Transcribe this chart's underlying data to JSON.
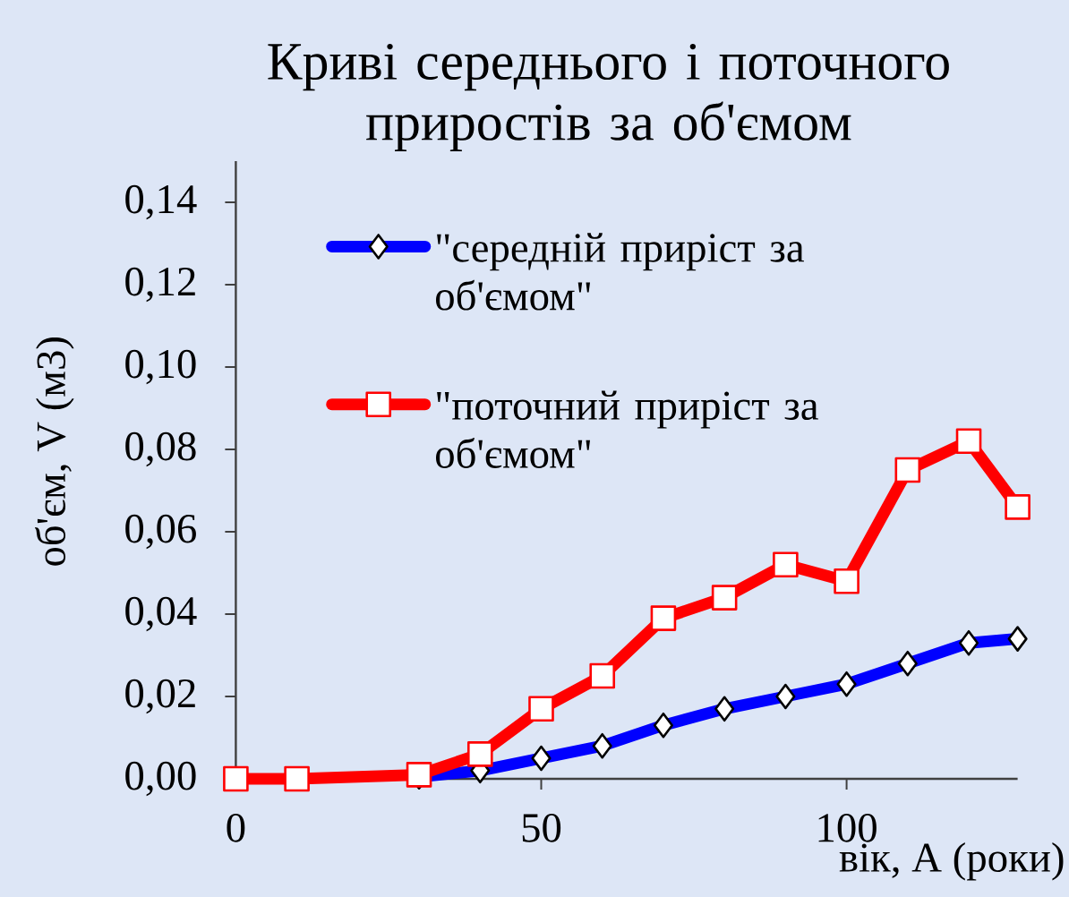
{
  "chart_data": {
    "type": "line",
    "title": "Криві середнього і поточного приростів за об'ємом",
    "xlabel": "вік, А (роки)",
    "ylabel": "об'єм, V (м3)",
    "xlim": [
      0,
      128
    ],
    "ylim": [
      0,
      0.15
    ],
    "xticks": [
      0,
      50,
      100
    ],
    "yticks": [
      {
        "value": 0,
        "label": "0,00"
      },
      {
        "value": 0.02,
        "label": "0,02"
      },
      {
        "value": 0.04,
        "label": "0,04"
      },
      {
        "value": 0.06,
        "label": "0,06"
      },
      {
        "value": 0.08,
        "label": "0,08"
      },
      {
        "value": 0.1,
        "label": "0,10"
      },
      {
        "value": 0.12,
        "label": "0,12"
      },
      {
        "value": 0.14,
        "label": "0,14"
      }
    ],
    "legend": "top left",
    "line_style": "solid",
    "series": [
      {
        "name": "\"середній приріст за об'ємом\"",
        "color": "#0000ff",
        "marker": "diamond",
        "x": [
          30,
          40,
          50,
          60,
          70,
          80,
          90,
          100,
          110,
          120,
          128
        ],
        "values": [
          0.0005,
          0.002,
          0.005,
          0.008,
          0.013,
          0.017,
          0.02,
          0.023,
          0.028,
          0.033,
          0.034
        ]
      },
      {
        "name": "\"поточний приріст за об'ємом\"",
        "color": "#ff0000",
        "marker": "square",
        "x": [
          0,
          10,
          30,
          40,
          50,
          60,
          70,
          80,
          90,
          100,
          110,
          120,
          128
        ],
        "values": [
          0,
          0,
          0.001,
          0.006,
          0.017,
          0.025,
          0.039,
          0.044,
          0.052,
          0.048,
          0.075,
          0.082,
          0.066
        ]
      }
    ]
  }
}
